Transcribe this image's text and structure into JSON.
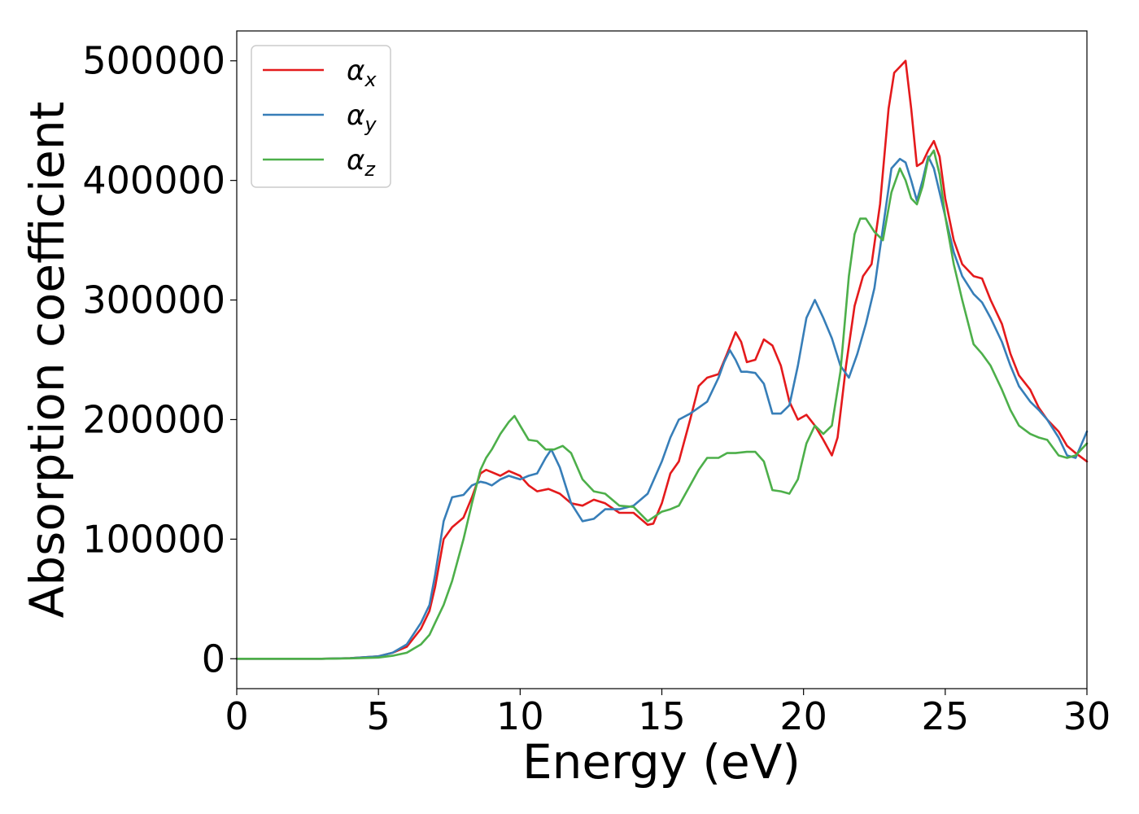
{
  "chart_data": {
    "type": "line",
    "xlabel": "Energy (eV)",
    "ylabel": "Absorption coefficient",
    "xlim": [
      0,
      30
    ],
    "ylim": [
      -25000,
      525000
    ],
    "xticks": [
      0,
      5,
      10,
      15,
      20,
      25,
      30
    ],
    "yticks": [
      0,
      100000,
      200000,
      300000,
      400000,
      500000
    ],
    "grid": false,
    "legend_position": "top-left",
    "series": [
      {
        "name": "αx",
        "symbol": "α",
        "subscript": "x",
        "color": "#e41a1c",
        "x": [
          0,
          3,
          4,
          5,
          5.5,
          6,
          6.5,
          6.8,
          7,
          7.3,
          7.6,
          8,
          8.3,
          8.6,
          8.8,
          9,
          9.3,
          9.6,
          10,
          10.3,
          10.6,
          11,
          11.4,
          11.8,
          12.2,
          12.6,
          13,
          13.5,
          14,
          14.5,
          14.7,
          15,
          15.3,
          15.6,
          16,
          16.3,
          16.6,
          17,
          17.3,
          17.6,
          17.8,
          18,
          18.3,
          18.6,
          18.9,
          19.2,
          19.5,
          19.8,
          20.1,
          20.4,
          20.7,
          21,
          21.2,
          21.5,
          21.8,
          22.1,
          22.4,
          22.7,
          23,
          23.2,
          23.4,
          23.6,
          23.8,
          24,
          24.2,
          24.4,
          24.6,
          24.8,
          25,
          25.3,
          25.6,
          26,
          26.3,
          26.6,
          27,
          27.3,
          27.6,
          28,
          28.3,
          28.6,
          29,
          29.3,
          29.6,
          30
        ],
        "y": [
          0,
          0,
          500,
          2000,
          5000,
          10000,
          25000,
          40000,
          60000,
          100000,
          110000,
          118000,
          135000,
          155000,
          158000,
          156000,
          153000,
          157000,
          153000,
          145000,
          140000,
          142000,
          138000,
          130000,
          128000,
          133000,
          130000,
          122000,
          122000,
          112000,
          113000,
          130000,
          155000,
          165000,
          200000,
          228000,
          235000,
          238000,
          255000,
          273000,
          265000,
          248000,
          250000,
          267000,
          262000,
          245000,
          215000,
          200000,
          204000,
          195000,
          183000,
          170000,
          185000,
          245000,
          295000,
          320000,
          330000,
          380000,
          460000,
          490000,
          495000,
          500000,
          460000,
          412000,
          415000,
          425000,
          433000,
          420000,
          385000,
          350000,
          330000,
          320000,
          318000,
          300000,
          280000,
          255000,
          237000,
          225000,
          210000,
          200000,
          190000,
          178000,
          172000,
          165000
        ]
      },
      {
        "name": "αy",
        "symbol": "α",
        "subscript": "y",
        "color": "#377eb8",
        "x": [
          0,
          3,
          4,
          5,
          5.5,
          6,
          6.5,
          6.8,
          7,
          7.3,
          7.6,
          8,
          8.3,
          8.6,
          8.8,
          9,
          9.3,
          9.6,
          10,
          10.3,
          10.6,
          10.9,
          11.1,
          11.4,
          11.8,
          12.2,
          12.6,
          13,
          13.5,
          14,
          14.5,
          15,
          15.3,
          15.6,
          16,
          16.3,
          16.6,
          17,
          17.2,
          17.4,
          17.6,
          17.8,
          18,
          18.3,
          18.6,
          18.9,
          19.2,
          19.5,
          19.8,
          20.1,
          20.4,
          20.7,
          21,
          21.3,
          21.6,
          21.9,
          22.2,
          22.5,
          22.8,
          23.1,
          23.4,
          23.6,
          23.8,
          24,
          24.2,
          24.4,
          24.6,
          24.8,
          25,
          25.3,
          25.6,
          26,
          26.3,
          26.6,
          27,
          27.3,
          27.6,
          28,
          28.3,
          28.6,
          29,
          29.3,
          29.6,
          30
        ],
        "y": [
          0,
          0,
          500,
          2000,
          5000,
          12000,
          30000,
          45000,
          70000,
          115000,
          135000,
          137000,
          145000,
          148000,
          147000,
          145000,
          150000,
          153000,
          150000,
          153000,
          155000,
          168000,
          175000,
          160000,
          130000,
          115000,
          117000,
          125000,
          125000,
          128000,
          138000,
          165000,
          185000,
          200000,
          205000,
          210000,
          215000,
          235000,
          248000,
          258000,
          250000,
          240000,
          240000,
          239000,
          230000,
          205000,
          205000,
          212000,
          245000,
          285000,
          300000,
          285000,
          268000,
          245000,
          235000,
          255000,
          280000,
          310000,
          360000,
          410000,
          418000,
          415000,
          400000,
          383000,
          400000,
          420000,
          410000,
          390000,
          370000,
          340000,
          320000,
          305000,
          298000,
          285000,
          265000,
          245000,
          228000,
          215000,
          208000,
          200000,
          185000,
          170000,
          168000,
          190000
        ]
      },
      {
        "name": "αz",
        "symbol": "α",
        "subscript": "z",
        "color": "#4daf4a",
        "x": [
          0,
          3,
          4,
          5,
          5.5,
          6,
          6.5,
          6.8,
          7,
          7.3,
          7.6,
          8,
          8.3,
          8.6,
          8.8,
          9,
          9.3,
          9.6,
          9.8,
          10,
          10.3,
          10.6,
          10.9,
          11.2,
          11.5,
          11.8,
          12.2,
          12.6,
          13,
          13.5,
          14,
          14.5,
          15,
          15.3,
          15.6,
          16,
          16.3,
          16.6,
          17,
          17.3,
          17.6,
          18,
          18.3,
          18.6,
          18.9,
          19.2,
          19.5,
          19.8,
          20.1,
          20.4,
          20.7,
          21,
          21.3,
          21.6,
          21.8,
          22,
          22.2,
          22.5,
          22.8,
          23.1,
          23.4,
          23.6,
          23.8,
          24,
          24.2,
          24.4,
          24.6,
          24.8,
          25,
          25.3,
          25.6,
          26,
          26.3,
          26.6,
          27,
          27.3,
          27.6,
          28,
          28.3,
          28.6,
          29,
          29.3,
          29.6,
          30
        ],
        "y": [
          0,
          0,
          300,
          1000,
          2500,
          5000,
          12000,
          20000,
          30000,
          45000,
          65000,
          100000,
          130000,
          158000,
          168000,
          175000,
          188000,
          198000,
          203000,
          195000,
          183000,
          182000,
          175000,
          175000,
          178000,
          172000,
          150000,
          140000,
          138000,
          128000,
          127000,
          115000,
          123000,
          125000,
          128000,
          145000,
          158000,
          168000,
          168000,
          172000,
          172000,
          173000,
          173000,
          165000,
          141000,
          140000,
          138000,
          150000,
          180000,
          195000,
          188000,
          195000,
          240000,
          320000,
          355000,
          368000,
          368000,
          357000,
          350000,
          390000,
          410000,
          400000,
          385000,
          380000,
          395000,
          418000,
          425000,
          405000,
          370000,
          330000,
          300000,
          263000,
          255000,
          245000,
          225000,
          208000,
          195000,
          188000,
          185000,
          183000,
          170000,
          168000,
          170000,
          180000
        ]
      }
    ]
  }
}
